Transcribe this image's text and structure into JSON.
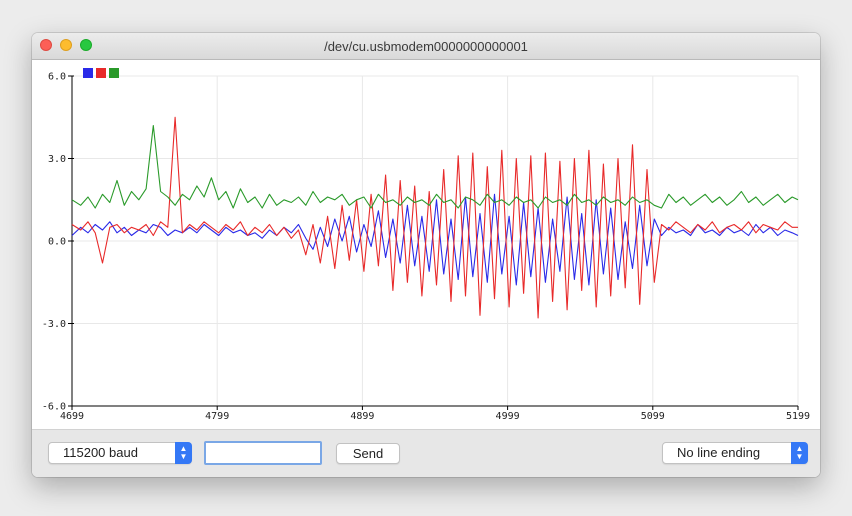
{
  "window": {
    "title": "/dev/cu.usbmodem0000000000001"
  },
  "bottom_bar": {
    "baud_rate": "115200 baud",
    "message_input_value": "",
    "send_label": "Send",
    "line_ending": "No line ending"
  },
  "colors": {
    "series1": "#2a2ae8",
    "series2": "#e82a2a",
    "series3": "#2a9a2a"
  },
  "chart_data": {
    "type": "line",
    "xlim": [
      4699,
      5199
    ],
    "ylim": [
      -6,
      6
    ],
    "x_ticks": [
      "4699",
      "4799",
      "4899",
      "4999",
      "5099",
      "5199"
    ],
    "y_ticks": [
      "6.0",
      "3.0",
      "0.0",
      "-3.0",
      "-6.0"
    ],
    "grid": true,
    "legend": "top-left",
    "series": [
      {
        "color": "#2a2ae8",
        "x": [
          4699,
          4705,
          4710,
          4715,
          4720,
          4725,
          4730,
          4735,
          4740,
          4745,
          4750,
          4755,
          4760,
          4765,
          4770,
          4775,
          4780,
          4785,
          4790,
          4795,
          4800,
          4805,
          4810,
          4815,
          4820,
          4825,
          4830,
          4835,
          4840,
          4845,
          4850,
          4855,
          4860,
          4865,
          4870,
          4875,
          4880,
          4885,
          4890,
          4895,
          4900,
          4905,
          4910,
          4915,
          4920,
          4925,
          4930,
          4935,
          4940,
          4945,
          4950,
          4955,
          4960,
          4965,
          4970,
          4975,
          4980,
          4985,
          4990,
          4995,
          5000,
          5005,
          5010,
          5015,
          5020,
          5025,
          5030,
          5035,
          5040,
          5045,
          5050,
          5055,
          5060,
          5065,
          5070,
          5075,
          5080,
          5085,
          5090,
          5095,
          5100,
          5105,
          5110,
          5115,
          5120,
          5125,
          5130,
          5135,
          5140,
          5145,
          5150,
          5155,
          5160,
          5165,
          5170,
          5175,
          5180,
          5185,
          5190,
          5195,
          5199
        ],
        "y": [
          0.2,
          0.5,
          0.3,
          0.6,
          0.4,
          0.7,
          0.3,
          0.5,
          0.2,
          0.4,
          0.3,
          0.6,
          0.5,
          0.2,
          0.4,
          0.3,
          0.5,
          0.3,
          0.6,
          0.4,
          0.2,
          0.5,
          0.3,
          0.4,
          0.2,
          0.3,
          0.1,
          0.4,
          0.2,
          0.5,
          0.3,
          0.6,
          0.1,
          -0.3,
          0.5,
          -0.2,
          0.8,
          0.0,
          0.9,
          -0.4,
          0.6,
          -0.2,
          1.1,
          -0.6,
          0.8,
          -0.8,
          1.3,
          -0.9,
          0.9,
          -1.1,
          1.5,
          -1.2,
          0.8,
          -1.4,
          1.6,
          -1.3,
          1.0,
          -1.5,
          1.7,
          -1.2,
          0.9,
          -1.6,
          1.4,
          -1.3,
          1.2,
          -1.5,
          0.8,
          -1.1,
          1.6,
          -1.4,
          1.0,
          -1.6,
          1.5,
          -1.2,
          1.2,
          -1.4,
          0.7,
          -1.0,
          1.3,
          -0.9,
          0.8,
          0.2,
          0.5,
          0.3,
          0.4,
          0.2,
          0.6,
          0.3,
          0.4,
          0.2,
          0.5,
          0.3,
          0.4,
          0.2,
          0.6,
          0.3,
          0.5,
          0.2,
          0.4,
          0.3,
          0.2
        ]
      },
      {
        "color": "#e82a2a",
        "x": [
          4699,
          4705,
          4710,
          4715,
          4720,
          4725,
          4730,
          4735,
          4740,
          4745,
          4750,
          4755,
          4760,
          4765,
          4770,
          4775,
          4780,
          4785,
          4790,
          4795,
          4800,
          4805,
          4810,
          4815,
          4820,
          4825,
          4830,
          4835,
          4840,
          4845,
          4850,
          4855,
          4860,
          4865,
          4870,
          4875,
          4880,
          4885,
          4890,
          4895,
          4900,
          4905,
          4910,
          4915,
          4920,
          4925,
          4930,
          4935,
          4940,
          4945,
          4950,
          4955,
          4960,
          4965,
          4970,
          4975,
          4980,
          4985,
          4990,
          4995,
          5000,
          5005,
          5010,
          5015,
          5020,
          5025,
          5030,
          5035,
          5040,
          5045,
          5050,
          5055,
          5060,
          5065,
          5070,
          5075,
          5080,
          5085,
          5090,
          5095,
          5100,
          5105,
          5110,
          5115,
          5120,
          5125,
          5130,
          5135,
          5140,
          5145,
          5150,
          5155,
          5160,
          5165,
          5170,
          5175,
          5180,
          5185,
          5190,
          5195,
          5199
        ],
        "y": [
          0.6,
          0.4,
          0.7,
          0.3,
          -0.8,
          0.5,
          0.6,
          0.3,
          0.5,
          0.4,
          0.6,
          0.2,
          0.7,
          0.5,
          4.5,
          0.3,
          0.6,
          0.4,
          0.7,
          0.5,
          0.3,
          0.6,
          0.4,
          0.7,
          0.2,
          0.5,
          0.3,
          0.6,
          0.2,
          0.5,
          0.1,
          0.4,
          -0.5,
          0.6,
          -0.8,
          0.9,
          -1.0,
          1.3,
          -0.7,
          1.5,
          -1.1,
          1.7,
          -0.9,
          2.4,
          -1.8,
          2.2,
          -1.5,
          2.0,
          -2.0,
          1.8,
          -1.6,
          2.6,
          -2.2,
          3.1,
          -2.0,
          3.2,
          -2.7,
          2.7,
          -2.1,
          3.3,
          -2.4,
          3.0,
          -1.9,
          3.1,
          -2.8,
          3.2,
          -2.2,
          2.9,
          -2.5,
          3.0,
          -1.8,
          3.3,
          -2.4,
          2.8,
          -2.0,
          3.0,
          -1.7,
          3.5,
          -2.3,
          2.6,
          -1.5,
          0.6,
          0.4,
          0.7,
          0.5,
          0.3,
          0.6,
          0.4,
          0.7,
          0.3,
          0.5,
          0.6,
          0.4,
          0.7,
          0.3,
          0.6,
          0.5,
          0.4,
          0.7,
          0.5,
          0.5
        ]
      },
      {
        "color": "#2a9a2a",
        "x": [
          4699,
          4705,
          4710,
          4715,
          4720,
          4725,
          4730,
          4735,
          4740,
          4745,
          4750,
          4755,
          4760,
          4765,
          4770,
          4775,
          4780,
          4785,
          4790,
          4795,
          4800,
          4805,
          4810,
          4815,
          4820,
          4825,
          4830,
          4835,
          4840,
          4845,
          4850,
          4855,
          4860,
          4865,
          4870,
          4875,
          4880,
          4885,
          4890,
          4895,
          4900,
          4905,
          4910,
          4915,
          4920,
          4925,
          4930,
          4935,
          4940,
          4945,
          4950,
          4955,
          4960,
          4965,
          4970,
          4975,
          4980,
          4985,
          4990,
          4995,
          5000,
          5005,
          5010,
          5015,
          5020,
          5025,
          5030,
          5035,
          5040,
          5045,
          5050,
          5055,
          5060,
          5065,
          5070,
          5075,
          5080,
          5085,
          5090,
          5095,
          5100,
          5105,
          5110,
          5115,
          5120,
          5125,
          5130,
          5135,
          5140,
          5145,
          5150,
          5155,
          5160,
          5165,
          5170,
          5175,
          5180,
          5185,
          5190,
          5195,
          5199
        ],
        "y": [
          1.5,
          1.3,
          1.6,
          1.2,
          1.7,
          1.4,
          2.2,
          1.3,
          1.8,
          1.5,
          1.9,
          4.2,
          1.8,
          1.6,
          1.3,
          1.7,
          1.5,
          2.0,
          1.6,
          2.3,
          1.5,
          1.8,
          1.2,
          1.9,
          1.4,
          1.6,
          1.2,
          1.7,
          1.3,
          1.5,
          1.4,
          1.6,
          1.3,
          1.8,
          1.4,
          1.6,
          1.5,
          1.7,
          1.3,
          1.5,
          1.6,
          1.2,
          1.7,
          1.4,
          1.5,
          1.3,
          1.6,
          1.4,
          1.5,
          1.3,
          1.7,
          1.4,
          1.5,
          1.2,
          1.6,
          1.5,
          1.3,
          1.7,
          1.4,
          1.5,
          1.3,
          1.6,
          1.4,
          1.5,
          1.2,
          1.6,
          1.4,
          1.5,
          1.3,
          1.7,
          1.4,
          1.5,
          1.3,
          1.6,
          1.4,
          1.5,
          1.3,
          1.6,
          1.4,
          1.5,
          1.3,
          1.2,
          1.7,
          1.4,
          1.6,
          1.3,
          1.5,
          1.7,
          1.4,
          1.6,
          1.3,
          1.5,
          1.8,
          1.4,
          1.6,
          1.3,
          1.5,
          1.7,
          1.4,
          1.6,
          1.5
        ]
      }
    ]
  }
}
